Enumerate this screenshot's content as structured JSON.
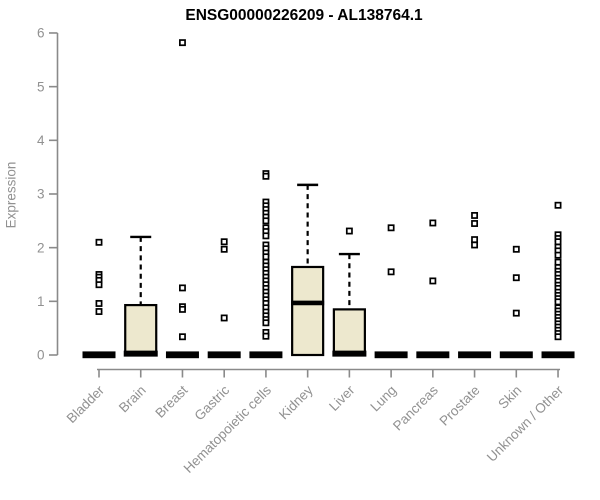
{
  "chart_data": {
    "type": "boxplot",
    "title": "ENSG00000226209 - AL138764.1",
    "ylabel": "Expression",
    "xlabel": "",
    "ylim": [
      0,
      6
    ],
    "yticks": [
      0,
      1,
      2,
      3,
      4,
      5,
      6
    ],
    "grid": false,
    "legend": null,
    "categories": [
      "Bladder",
      "Brain",
      "Breast",
      "Gastric",
      "Hematopoietic cells",
      "Kidney",
      "Liver",
      "Lung",
      "Pancreas",
      "Prostate",
      "Skin",
      "Unknown / Other"
    ],
    "series": [
      {
        "category": "Bladder",
        "q1": 0,
        "median": 0,
        "q3": 0,
        "whisker_low": 0,
        "whisker_high": 0,
        "outliers": [
          2.1,
          1.5,
          1.45,
          1.39,
          1.31,
          0.96,
          0.81
        ]
      },
      {
        "category": "Brain",
        "q1": 0,
        "median": 0.02,
        "q3": 0.93,
        "whisker_low": 0,
        "whisker_high": 2.2,
        "outliers": []
      },
      {
        "category": "Breast",
        "q1": 0,
        "median": 0,
        "q3": 0,
        "whisker_low": 0,
        "whisker_high": 0,
        "outliers": [
          5.82,
          1.25,
          0.9,
          0.85,
          0.34
        ]
      },
      {
        "category": "Gastric",
        "q1": 0,
        "median": 0,
        "q3": 0,
        "whisker_low": 0,
        "whisker_high": 0,
        "outliers": [
          2.11,
          1.97,
          0.69
        ]
      },
      {
        "category": "Hematopoietic cells",
        "q1": 0,
        "median": 0,
        "q3": 0,
        "whisker_low": 0,
        "whisker_high": 0,
        "outliers": [
          3.38,
          3.33,
          2.85,
          2.78,
          2.71,
          2.64,
          2.57,
          2.5,
          2.37,
          2.3,
          2.22,
          2.05,
          1.98,
          1.9,
          1.83,
          1.73,
          1.66,
          1.59,
          1.52,
          1.45,
          1.38,
          1.31,
          1.24,
          1.17,
          1.1,
          1.03,
          0.96,
          0.88,
          0.8,
          0.73,
          0.66,
          0.6,
          0.42,
          0.35
        ]
      },
      {
        "category": "Kidney",
        "q1": 0,
        "median": 0.97,
        "q3": 1.64,
        "whisker_low": 0,
        "whisker_high": 3.17,
        "outliers": []
      },
      {
        "category": "Liver",
        "q1": 0,
        "median": 0.02,
        "q3": 0.85,
        "whisker_low": 0,
        "whisker_high": 1.88,
        "outliers": [
          2.31
        ]
      },
      {
        "category": "Lung",
        "q1": 0,
        "median": 0,
        "q3": 0,
        "whisker_low": 0,
        "whisker_high": 0,
        "outliers": [
          2.37,
          1.55
        ]
      },
      {
        "category": "Pancreas",
        "q1": 0,
        "median": 0,
        "q3": 0,
        "whisker_low": 0,
        "whisker_high": 0,
        "outliers": [
          2.46,
          1.38
        ]
      },
      {
        "category": "Prostate",
        "q1": 0,
        "median": 0,
        "q3": 0,
        "whisker_low": 0,
        "whisker_high": 0,
        "outliers": [
          2.6,
          2.45,
          2.15,
          2.05
        ]
      },
      {
        "category": "Skin",
        "q1": 0,
        "median": 0,
        "q3": 0,
        "whisker_low": 0,
        "whisker_high": 0,
        "outliers": [
          1.97,
          1.44,
          0.78
        ]
      },
      {
        "category": "Unknown / Other",
        "q1": 0,
        "median": 0,
        "q3": 0,
        "whisker_low": 0,
        "whisker_high": 0,
        "outliers": [
          2.79,
          2.24,
          2.17,
          2.11,
          2.01,
          1.94,
          1.86,
          1.73,
          1.63,
          1.56,
          1.5,
          1.43,
          1.37,
          1.3,
          1.24,
          1.17,
          1.11,
          1.05,
          0.99,
          0.88,
          0.82,
          0.76,
          0.7,
          0.64,
          0.58,
          0.52,
          0.46,
          0.4,
          0.34
        ]
      }
    ],
    "colors": {
      "box_fill": "#ede8ce",
      "box_border": "#000000",
      "median": "#000000",
      "whisker": "#000000",
      "outlier_stroke": "#000000",
      "outlier_fill": "#ffffff",
      "axis": "#8a8a8a",
      "tick_text": "#919191",
      "title_text": "#000000",
      "background": "#ffffff"
    }
  }
}
